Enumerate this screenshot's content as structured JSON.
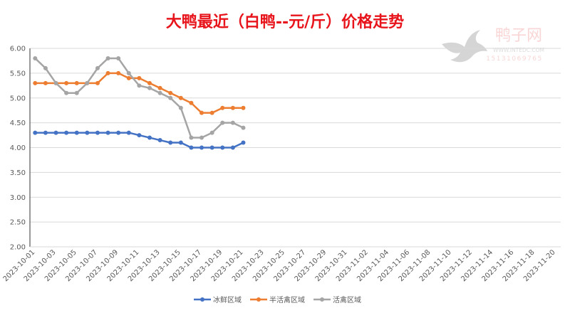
{
  "chart_data": {
    "type": "line",
    "title": "大鸭最近（白鸭--元/斤）价格走势",
    "xlabel": "",
    "ylabel": "",
    "ylim": [
      2.0,
      6.0
    ],
    "ytick_step": 0.5,
    "grid": true,
    "legend_position": "bottom",
    "x_start": "2023-10-01",
    "x_end": "2023-11-20",
    "x_label_every_days": 2,
    "series": [
      {
        "name": "冰鲜区域",
        "color": "#4472c4",
        "values": [
          4.3,
          4.3,
          4.3,
          4.3,
          4.3,
          4.3,
          4.3,
          4.3,
          4.3,
          4.3,
          4.25,
          4.2,
          4.15,
          4.1,
          4.1,
          4.0,
          4.0,
          4.0,
          4.0,
          4.0,
          4.1
        ]
      },
      {
        "name": "半活禽区域",
        "color": "#ed7d31",
        "values": [
          5.3,
          5.3,
          5.3,
          5.3,
          5.3,
          5.3,
          5.3,
          5.5,
          5.5,
          5.4,
          5.4,
          5.3,
          5.2,
          5.1,
          5.0,
          4.9,
          4.7,
          4.7,
          4.8,
          4.8,
          4.8
        ]
      },
      {
        "name": "活禽区域",
        "color": "#a5a5a5",
        "values": [
          5.8,
          5.6,
          5.3,
          5.1,
          5.1,
          5.3,
          5.6,
          5.8,
          5.8,
          5.5,
          5.25,
          5.2,
          5.1,
          5.0,
          4.8,
          4.2,
          4.2,
          4.3,
          4.5,
          4.5,
          4.4
        ]
      }
    ]
  },
  "watermark": {
    "name": "鸭子网",
    "url": "WWW.INTEDC.COM",
    "phone": "15131069765"
  }
}
